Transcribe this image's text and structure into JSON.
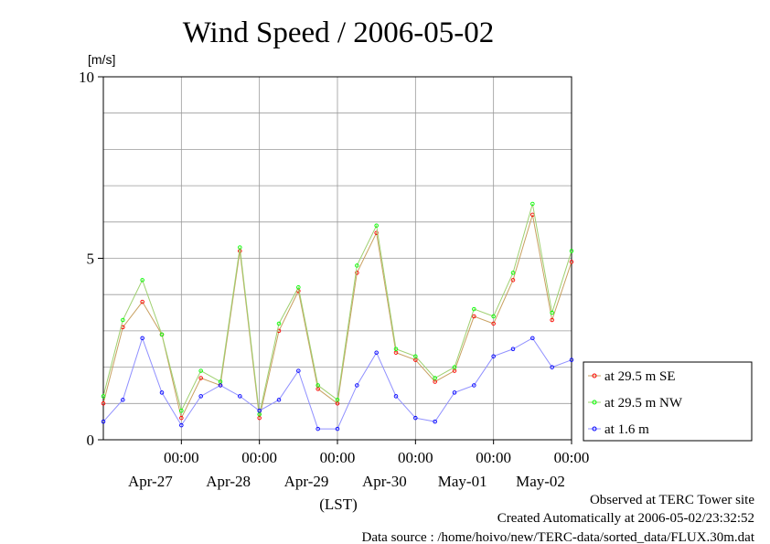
{
  "chart_data": {
    "type": "line",
    "title": "Wind Speed / 2006-05-02",
    "ylabel": "[m/s]",
    "xlabel": "(LST)",
    "ylim": [
      0,
      10
    ],
    "xlim": [
      -1.0,
      5.0
    ],
    "x_unit": "days from Apr-27 00:00",
    "yticks": [
      {
        "value": 0,
        "label": "0"
      },
      {
        "value": 5,
        "label": "5"
      },
      {
        "value": 10,
        "label": "10"
      }
    ],
    "xticks": [
      {
        "value": 0,
        "time": "00:00",
        "date": "Apr-27"
      },
      {
        "value": 1,
        "time": "00:00",
        "date": "Apr-28"
      },
      {
        "value": 2,
        "time": "00:00",
        "date": "Apr-29"
      },
      {
        "value": 3,
        "time": "00:00",
        "date": "Apr-30"
      },
      {
        "value": 4,
        "time": "00:00",
        "date": "May-01"
      },
      {
        "value": 5,
        "time": "00:00",
        "date": "May-02"
      }
    ],
    "grid": true,
    "legend_position": "right",
    "series": [
      {
        "name": "at 29.5 m SE",
        "color": "#ff0000",
        "line_color": "#c8a060",
        "x": [
          -1.0,
          -0.75,
          -0.5,
          -0.25,
          0.0,
          0.25,
          0.5,
          0.75,
          1.0,
          1.25,
          1.5,
          1.75,
          2.0,
          2.25,
          2.5,
          2.75,
          3.0,
          3.25,
          3.5,
          3.75,
          4.0,
          4.25,
          4.5,
          4.75,
          5.0
        ],
        "y": [
          1.0,
          3.1,
          3.8,
          2.9,
          0.6,
          1.7,
          1.5,
          5.2,
          0.6,
          3.0,
          4.1,
          1.4,
          1.0,
          4.6,
          5.7,
          2.4,
          2.2,
          1.6,
          1.9,
          3.4,
          3.2,
          4.4,
          6.2,
          3.3,
          4.9
        ]
      },
      {
        "name": "at 29.5 m NW",
        "color": "#00ff00",
        "line_color": "#9fd070",
        "x": [
          -1.0,
          -0.75,
          -0.5,
          -0.25,
          0.0,
          0.25,
          0.5,
          0.75,
          1.0,
          1.25,
          1.5,
          1.75,
          2.0,
          2.25,
          2.5,
          2.75,
          3.0,
          3.25,
          3.5,
          3.75,
          4.0,
          4.25,
          4.5,
          4.75,
          5.0
        ],
        "y": [
          1.2,
          3.3,
          4.4,
          2.9,
          0.8,
          1.9,
          1.6,
          5.3,
          0.7,
          3.2,
          4.2,
          1.5,
          1.1,
          4.8,
          5.9,
          2.5,
          2.3,
          1.7,
          2.0,
          3.6,
          3.4,
          4.6,
          6.5,
          3.5,
          5.2
        ]
      },
      {
        "name": "at 1.6 m",
        "color": "#0000ff",
        "line_color": "#9090ff",
        "x": [
          -1.0,
          -0.75,
          -0.5,
          -0.25,
          0.0,
          0.25,
          0.5,
          0.75,
          1.0,
          1.25,
          1.5,
          1.75,
          2.0,
          2.25,
          2.5,
          2.75,
          3.0,
          3.25,
          3.5,
          3.75,
          4.0,
          4.25,
          4.5,
          4.75,
          5.0
        ],
        "y": [
          0.5,
          1.1,
          2.8,
          1.3,
          0.4,
          1.2,
          1.5,
          1.2,
          0.8,
          1.1,
          1.9,
          0.3,
          0.3,
          1.5,
          2.4,
          1.2,
          0.6,
          0.5,
          1.3,
          1.5,
          2.3,
          2.5,
          2.8,
          2.0,
          2.2
        ]
      }
    ]
  },
  "footer": {
    "line1": "Observed at TERC Tower site",
    "line2": "Created Automatically at 2006-05-02/23:32:52",
    "line3": "Data source : /home/hoivo/new/TERC-data/sorted_data/FLUX.30m.dat"
  }
}
